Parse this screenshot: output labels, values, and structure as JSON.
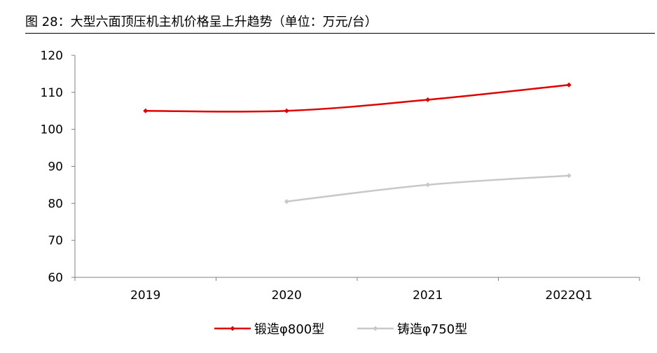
{
  "figure": {
    "caption": "图 28：大型六面顶压机主机价格呈上升趋势（单位：万元/台）"
  },
  "chart_data": {
    "type": "line",
    "title": "",
    "xlabel": "",
    "ylabel": "",
    "categories": [
      "2019",
      "2020",
      "2021",
      "2022Q1"
    ],
    "ylim": [
      60,
      120
    ],
    "yticks": [
      60,
      70,
      80,
      90,
      100,
      110,
      120
    ],
    "grid": false,
    "legend_position": "bottom-center",
    "series": [
      {
        "name": "锻造φ800型",
        "color": "#e00000",
        "marker": "diamond",
        "values": [
          105,
          105,
          108,
          112
        ]
      },
      {
        "name": "铸造φ750型",
        "color": "#c8c8c8",
        "marker": "diamond",
        "values": [
          null,
          80.5,
          85,
          87.5
        ]
      }
    ]
  }
}
